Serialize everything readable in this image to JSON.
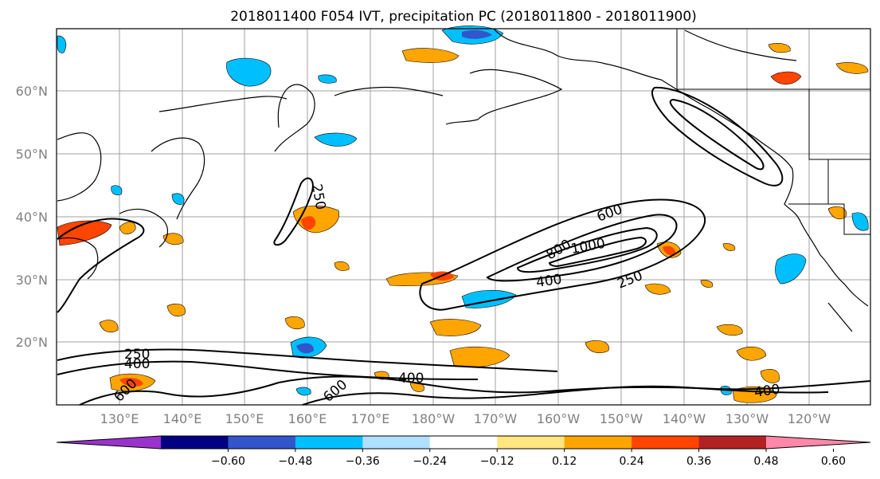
{
  "title": "2018011400 F054 IVT, precipitation PC (2018011800 - 2018011900)",
  "lat_labels": [
    "60°N",
    "50°N",
    "40°N",
    "30°N",
    "20°N"
  ],
  "lon_labels": [
    "130°E",
    "140°E",
    "150°E",
    "160°E",
    "170°E",
    "180°W",
    "170°W",
    "160°W",
    "150°W",
    "140°W",
    "130°W",
    "120°W"
  ],
  "contour_labels": [
    "250",
    "600",
    "800",
    "1000",
    "400",
    "250",
    "250",
    "400",
    "600",
    "400",
    "400",
    "600"
  ],
  "colorbar": {
    "ticks": [
      "−0.60",
      "−0.48",
      "−0.36",
      "−0.24",
      "−0.12",
      "0.12",
      "0.24",
      "0.36",
      "0.48",
      "0.60"
    ],
    "colors": [
      "#9933cc",
      "#000080",
      "#3355cc",
      "#00bfff",
      "#b0e0ff",
      "#ffffff",
      "#ffe680",
      "#ffa500",
      "#ff4500",
      "#b22222",
      "#ff88aa"
    ]
  },
  "colors": {
    "ocean": "#ffffff",
    "land_line": "#000000",
    "grid": "#a0a0a0",
    "ivt_contour": "#000000"
  }
}
